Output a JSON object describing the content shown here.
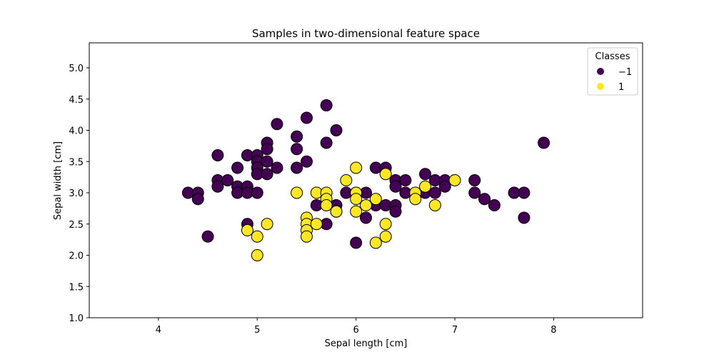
{
  "chart_data": {
    "type": "scatter",
    "title": "Samples in two-dimensional feature space",
    "xlabel": "Sepal length [cm]",
    "ylabel": "Sepal width [cm]",
    "xlim": [
      3.3,
      8.9
    ],
    "ylim": [
      1.0,
      5.4
    ],
    "xticks": [
      4,
      5,
      6,
      7,
      8
    ],
    "yticks": [
      1.0,
      1.5,
      2.0,
      2.5,
      3.0,
      3.5,
      4.0,
      4.5,
      5.0
    ],
    "grid": false,
    "legend": {
      "title": "Classes",
      "placement": "top-right",
      "entries": [
        {
          "label": "−1",
          "color": "#440154"
        },
        {
          "label": "1",
          "color": "#fde725"
        }
      ]
    },
    "series": [
      {
        "name": "−1",
        "color": "#440154",
        "points": [
          [
            4.3,
            3.0
          ],
          [
            4.4,
            3.0
          ],
          [
            4.4,
            2.9
          ],
          [
            4.5,
            2.3
          ],
          [
            4.6,
            3.6
          ],
          [
            4.6,
            3.2
          ],
          [
            4.6,
            3.1
          ],
          [
            4.7,
            3.2
          ],
          [
            4.8,
            3.4
          ],
          [
            4.8,
            3.1
          ],
          [
            4.8,
            3.0
          ],
          [
            4.9,
            3.6
          ],
          [
            4.9,
            3.1
          ],
          [
            4.9,
            3.0
          ],
          [
            4.9,
            2.5
          ],
          [
            5.0,
            3.6
          ],
          [
            5.0,
            3.5
          ],
          [
            5.0,
            3.4
          ],
          [
            5.0,
            3.3
          ],
          [
            5.0,
            3.0
          ],
          [
            5.1,
            3.8
          ],
          [
            5.1,
            3.7
          ],
          [
            5.1,
            3.5
          ],
          [
            5.1,
            3.3
          ],
          [
            5.2,
            4.1
          ],
          [
            5.2,
            3.4
          ],
          [
            5.4,
            3.9
          ],
          [
            5.4,
            3.7
          ],
          [
            5.4,
            3.4
          ],
          [
            5.5,
            4.2
          ],
          [
            5.5,
            3.5
          ],
          [
            5.6,
            2.8
          ],
          [
            5.7,
            4.4
          ],
          [
            5.7,
            3.8
          ],
          [
            5.7,
            2.5
          ],
          [
            5.8,
            4.0
          ],
          [
            5.8,
            2.8
          ],
          [
            5.8,
            2.7
          ],
          [
            5.9,
            3.0
          ],
          [
            6.0,
            3.0
          ],
          [
            6.0,
            2.2
          ],
          [
            6.1,
            3.0
          ],
          [
            6.1,
            2.6
          ],
          [
            6.2,
            3.4
          ],
          [
            6.2,
            2.8
          ],
          [
            6.3,
            3.4
          ],
          [
            6.3,
            2.8
          ],
          [
            6.4,
            3.2
          ],
          [
            6.4,
            3.1
          ],
          [
            6.4,
            2.8
          ],
          [
            6.4,
            2.7
          ],
          [
            6.5,
            3.2
          ],
          [
            6.5,
            3.0
          ],
          [
            6.7,
            3.3
          ],
          [
            6.7,
            3.0
          ],
          [
            6.8,
            3.2
          ],
          [
            6.8,
            3.0
          ],
          [
            6.9,
            3.2
          ],
          [
            6.9,
            3.1
          ],
          [
            7.2,
            3.2
          ],
          [
            7.2,
            3.0
          ],
          [
            7.3,
            2.9
          ],
          [
            7.4,
            2.8
          ],
          [
            7.6,
            3.0
          ],
          [
            7.7,
            3.0
          ],
          [
            7.7,
            2.6
          ],
          [
            7.9,
            3.8
          ]
        ]
      },
      {
        "name": "1",
        "color": "#fde725",
        "points": [
          [
            4.9,
            2.4
          ],
          [
            5.0,
            2.3
          ],
          [
            5.0,
            2.0
          ],
          [
            5.1,
            2.5
          ],
          [
            5.4,
            3.0
          ],
          [
            5.5,
            2.6
          ],
          [
            5.5,
            2.5
          ],
          [
            5.5,
            2.4
          ],
          [
            5.5,
            2.3
          ],
          [
            5.6,
            3.0
          ],
          [
            5.6,
            2.5
          ],
          [
            5.7,
            3.0
          ],
          [
            5.7,
            2.9
          ],
          [
            5.7,
            2.8
          ],
          [
            5.8,
            2.7
          ],
          [
            5.9,
            3.2
          ],
          [
            6.0,
            3.4
          ],
          [
            6.0,
            3.0
          ],
          [
            6.0,
            2.9
          ],
          [
            6.0,
            2.7
          ],
          [
            6.1,
            2.8
          ],
          [
            6.2,
            2.9
          ],
          [
            6.2,
            2.2
          ],
          [
            6.3,
            3.3
          ],
          [
            6.3,
            2.5
          ],
          [
            6.3,
            2.3
          ],
          [
            6.6,
            3.0
          ],
          [
            6.6,
            2.9
          ],
          [
            6.7,
            3.1
          ],
          [
            6.8,
            2.8
          ],
          [
            7.0,
            3.2
          ]
        ]
      }
    ]
  }
}
